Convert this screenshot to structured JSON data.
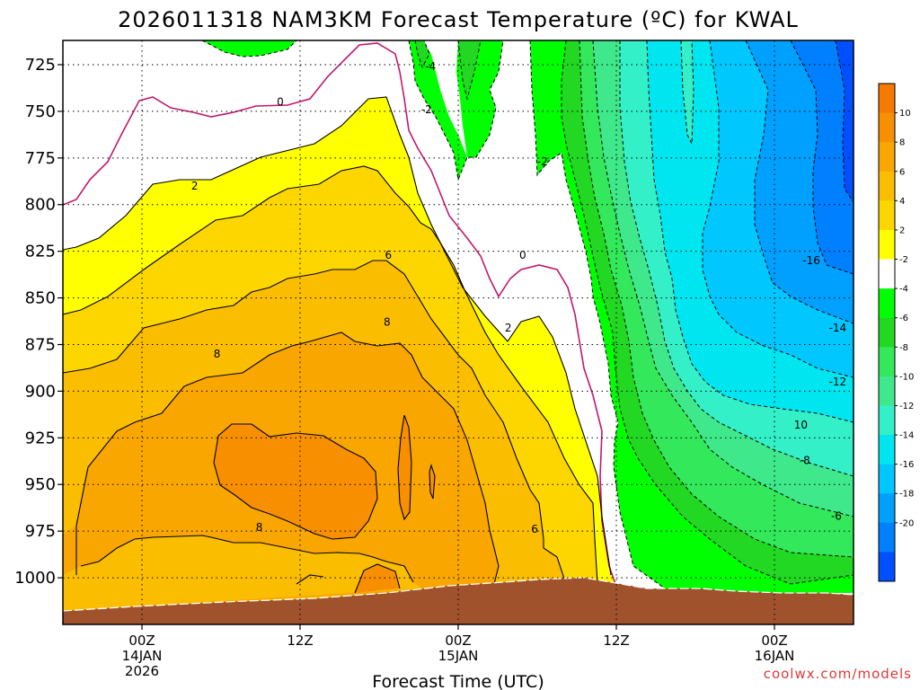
{
  "chart_data": {
    "type": "contour",
    "title": "2026011318 NAM3KM Forecast Temperature (ºC) for KWAL",
    "xlabel": "Forecast Time (UTC)",
    "ylabel": "",
    "credit": "coolwx.com/models",
    "x_range_hours": [
      -6,
      54
    ],
    "y_range_hPa": [
      1025,
      712
    ],
    "y_scale": "pressure (inverted)",
    "grid": "dotted",
    "yticks": [
      725,
      750,
      775,
      800,
      825,
      850,
      875,
      900,
      925,
      950,
      975,
      1000
    ],
    "xticks": [
      {
        "hour": 0,
        "lines": [
          "00Z",
          "14JAN",
          "2026"
        ]
      },
      {
        "hour": 12,
        "lines": [
          "12Z"
        ]
      },
      {
        "hour": 24,
        "lines": [
          "00Z",
          "15JAN"
        ]
      },
      {
        "hour": 36,
        "lines": [
          "12Z"
        ]
      },
      {
        "hour": 48,
        "lines": [
          "00Z",
          "16JAN"
        ]
      }
    ],
    "colorbar": {
      "labels": [
        "10",
        "8",
        "6",
        "4",
        "2",
        "-2",
        "-4",
        "-6",
        "-8",
        "-10",
        "-12",
        "-14",
        "-16",
        "-18",
        "-20"
      ],
      "colors": [
        "#f57b00",
        "#f78f00",
        "#f9a600",
        "#fbbd00",
        "#fdd600",
        "#ffff00",
        "#ffffff",
        "#00ff00",
        "#22d822",
        "#33e85a",
        "#3fe88a",
        "#33f0c8",
        "#00e6f0",
        "#00c8ff",
        "#00a0ff",
        "#0080ff",
        "#0050ff"
      ]
    },
    "contour_labels": [
      {
        "text": "0",
        "t": 10.5,
        "p": 745
      },
      {
        "text": "2",
        "t": 4.0,
        "p": 790
      },
      {
        "text": "-4",
        "t": 21.9,
        "p": 726
      },
      {
        "text": "-2",
        "t": 21.6,
        "p": 749
      },
      {
        "text": "-2",
        "t": 30.4,
        "p": 777
      },
      {
        "text": "0",
        "t": 28.9,
        "p": 827
      },
      {
        "text": "6",
        "t": 18.7,
        "p": 827
      },
      {
        "text": "8",
        "t": 18.6,
        "p": 863
      },
      {
        "text": "8",
        "t": 5.7,
        "p": 880
      },
      {
        "text": "2",
        "t": 27.8,
        "p": 866
      },
      {
        "text": "8",
        "t": 8.9,
        "p": 973
      },
      {
        "text": "6",
        "t": 29.8,
        "p": 974
      },
      {
        "text": "-16",
        "t": 50.8,
        "p": 830
      },
      {
        "text": "-14",
        "t": 52.8,
        "p": 866
      },
      {
        "text": "-12",
        "t": 52.8,
        "p": 895
      },
      {
        "text": "10",
        "t": 50.0,
        "p": 918
      },
      {
        "text": "-8",
        "t": 50.3,
        "p": 937
      },
      {
        "text": "-6",
        "t": 52.7,
        "p": 967
      }
    ]
  }
}
